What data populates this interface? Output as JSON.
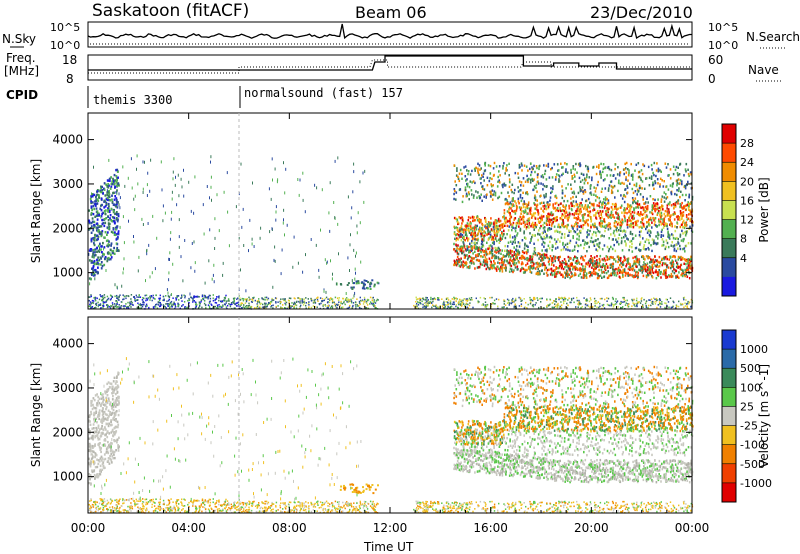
{
  "header": {
    "station": "Saskatoon (fitACF)",
    "beam": "Beam 06",
    "date": "23/Dec/2010"
  },
  "top_panel": {
    "left_label": "N.Sky",
    "right_label": "N.Search",
    "left_ticks": [
      "10^5",
      "10^0"
    ],
    "right_ticks": [
      "10^5",
      "10^0"
    ]
  },
  "freq_panel": {
    "left_label_1": "Freq.",
    "left_label_2": "[MHz]",
    "right_label": "Nave",
    "left_ticks": [
      "18",
      "8"
    ],
    "right_ticks": [
      "60",
      "0"
    ]
  },
  "cpid_panel": {
    "label": "CPID",
    "segments": [
      "themis 3300",
      "normalsound (fast) 157"
    ]
  },
  "chart_data": [
    {
      "type": "heatmap",
      "name": "power",
      "xlabel": "Time UT",
      "ylabel": "Slant Range [km]",
      "x_ticks": [
        "00:00",
        "04:00",
        "08:00",
        "12:00",
        "16:00",
        "20:00",
        "00:00"
      ],
      "y_ticks": [
        1000,
        2000,
        3000,
        4000
      ],
      "x_range_hours": [
        0,
        24
      ],
      "y_range_km": [
        180,
        4600
      ],
      "colorbar_label": "Power [dB]",
      "colorbar_ticks": [
        28,
        24,
        20,
        16,
        12,
        8,
        4
      ],
      "colorbar_colors": [
        "#e00000",
        "#ff4a00",
        "#f08c00",
        "#f0c020",
        "#c8e050",
        "#52b050",
        "#3a7a5a",
        "#2a4aa0",
        "#1a1ae0"
      ]
    },
    {
      "type": "heatmap",
      "name": "velocity",
      "xlabel": "Time UT",
      "ylabel": "Slant Range [km]",
      "x_ticks": [
        "00:00",
        "04:00",
        "08:00",
        "12:00",
        "16:00",
        "20:00",
        "00:00"
      ],
      "y_ticks": [
        1000,
        2000,
        3000,
        4000
      ],
      "x_range_hours": [
        0,
        24
      ],
      "y_range_km": [
        180,
        4600
      ],
      "colorbar_label": "Velocity [m s^-1]",
      "colorbar_ticks": [
        1000,
        500,
        100,
        25,
        -25,
        -100,
        -500,
        -1000
      ],
      "colorbar_colors": [
        "#1a3ad0",
        "#2a6aa8",
        "#3a8a5a",
        "#5ac84a",
        "#c8c8c0",
        "#f0c020",
        "#f08000",
        "#f04000",
        "#e00000"
      ]
    }
  ]
}
